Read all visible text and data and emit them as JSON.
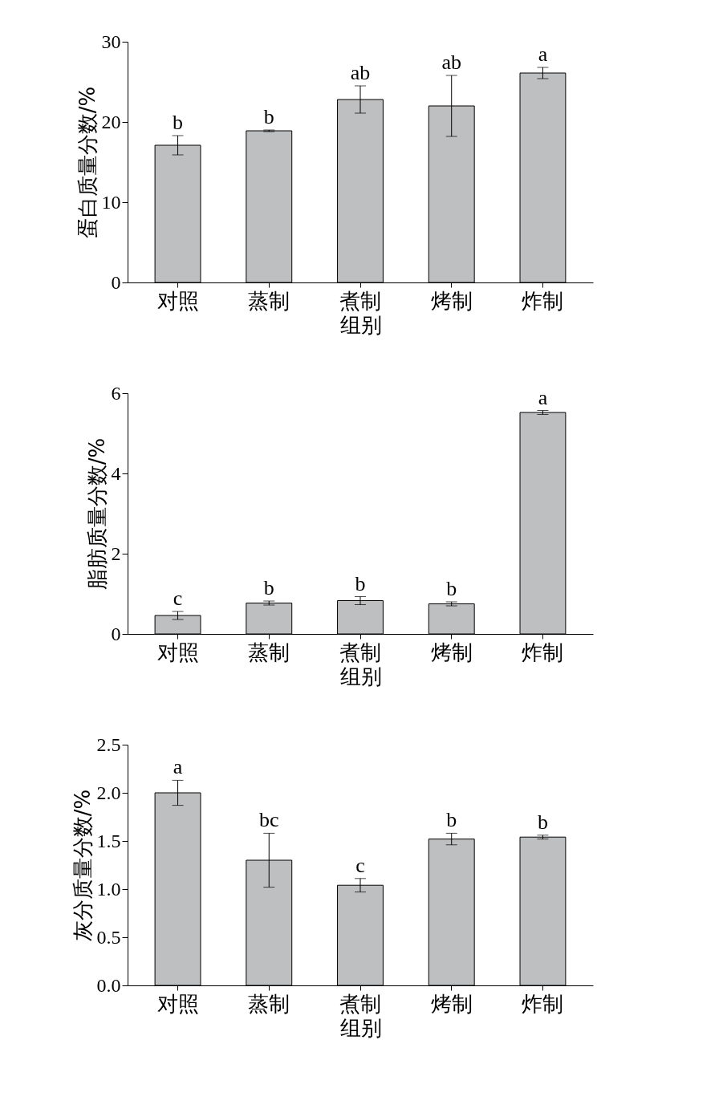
{
  "chart_data": [
    {
      "type": "bar",
      "categories": [
        "对照",
        "蒸制",
        "煮制",
        "烤制",
        "炸制"
      ],
      "values": [
        17.1,
        18.9,
        22.8,
        22.0,
        26.1
      ],
      "errors": [
        1.2,
        0.1,
        1.7,
        3.8,
        0.7
      ],
      "color": "#bebfc1",
      "xlabel": "组别",
      "ylabel": "蛋白质量分数/%",
      "ylim": [
        0,
        30
      ],
      "yticks": [
        0,
        10,
        20,
        30
      ],
      "annotations": [
        {
          "text": "b",
          "x": "对照",
          "y": 18.3
        },
        {
          "text": "b",
          "x": "蒸制",
          "y": 19.0
        },
        {
          "text": "ab",
          "x": "煮制",
          "y": 24.5
        },
        {
          "text": "ab",
          "x": "烤制",
          "y": 25.8
        },
        {
          "text": "a",
          "x": "炸制",
          "y": 26.8
        }
      ]
    },
    {
      "type": "bar",
      "categories": [
        "对照",
        "蒸制",
        "煮制",
        "烤制",
        "炸制"
      ],
      "values": [
        0.46,
        0.77,
        0.83,
        0.75,
        5.52
      ],
      "errors": [
        0.1,
        0.05,
        0.1,
        0.05,
        0.05
      ],
      "color": "#bebfc1",
      "xlabel": "组别",
      "ylabel": "脂肪质量分数/%",
      "ylim": [
        0,
        6
      ],
      "yticks": [
        0,
        2,
        4,
        6
      ],
      "annotations": [
        {
          "text": "c",
          "x": "对照",
          "y": 0.56
        },
        {
          "text": "b",
          "x": "蒸制",
          "y": 0.82
        },
        {
          "text": "b",
          "x": "煮制",
          "y": 0.93
        },
        {
          "text": "b",
          "x": "烤制",
          "y": 0.8
        },
        {
          "text": "a",
          "x": "炸制",
          "y": 5.57
        }
      ]
    },
    {
      "type": "bar",
      "categories": [
        "对照",
        "蒸制",
        "煮制",
        "烤制",
        "炸制"
      ],
      "values": [
        2.0,
        1.3,
        1.04,
        1.52,
        1.54
      ],
      "errors": [
        0.13,
        0.28,
        0.07,
        0.06,
        0.02
      ],
      "color": "#bebfc1",
      "xlabel": "组别",
      "ylabel": "灰分质量分数/%",
      "ylim": [
        0,
        2.5
      ],
      "yticks": [
        {
          "value": 0,
          "label": "0.0"
        },
        {
          "value": 0.5,
          "label": "0.5"
        },
        {
          "value": 1,
          "label": "1.0"
        },
        {
          "value": 1.5,
          "label": "1.5"
        },
        {
          "value": 2,
          "label": "2.0"
        },
        {
          "value": 2.5,
          "label": "2.5"
        }
      ],
      "annotations": [
        {
          "text": "a",
          "x": "对照",
          "y": 2.13
        },
        {
          "text": "bc",
          "x": "蒸制",
          "y": 1.58
        },
        {
          "text": "c",
          "x": "煮制",
          "y": 1.11
        },
        {
          "text": "b",
          "x": "烤制",
          "y": 1.58
        },
        {
          "text": "b",
          "x": "炸制",
          "y": 1.56
        }
      ]
    }
  ]
}
